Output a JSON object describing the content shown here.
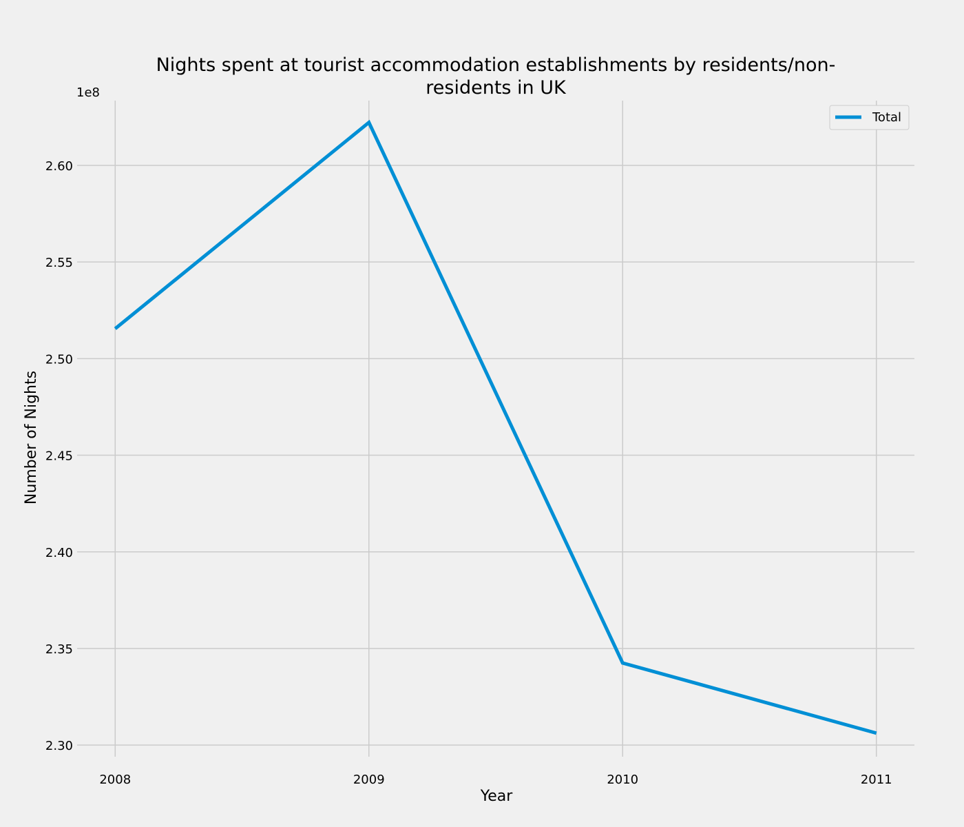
{
  "chart_data": {
    "type": "line",
    "title_line1": "Nights spent at tourist accommodation establishments by residents/non-",
    "title_line2": "residents in UK",
    "xlabel": "Year",
    "ylabel": "Number of Nights",
    "y_offset_label": "1e8",
    "x": [
      2008,
      2009,
      2010,
      2011
    ],
    "x_tick_labels": [
      "2008",
      "2009",
      "2010",
      "2011"
    ],
    "y_ticks": [
      2.3,
      2.35,
      2.4,
      2.45,
      2.5,
      2.55,
      2.6
    ],
    "y_tick_labels": [
      "2.30",
      "2.35",
      "2.40",
      "2.45",
      "2.50",
      "2.55",
      "2.60"
    ],
    "ylim": [
      2.294,
      2.6335
    ],
    "xlim": [
      2007.85,
      2011.15
    ],
    "grid": true,
    "legend_position": "top-right",
    "series": [
      {
        "name": "Total",
        "color": "#008fd5",
        "values": [
          2.5155,
          2.6222,
          2.3425,
          2.3062
        ]
      }
    ],
    "background_color": "#f0f0f0",
    "grid_color": "#cbcbcb"
  }
}
